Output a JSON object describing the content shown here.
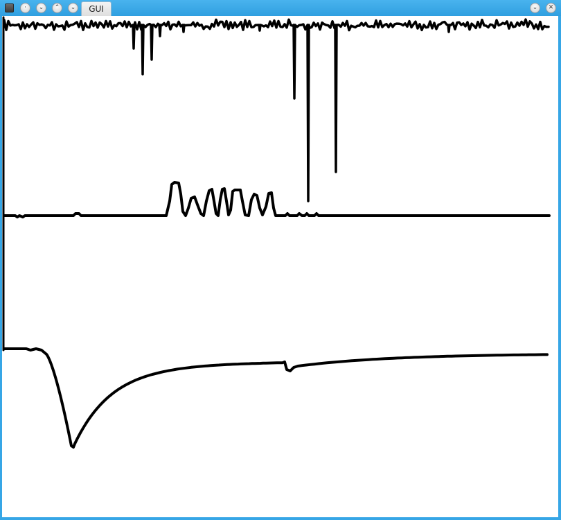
{
  "window": {
    "title": "GUI",
    "titlebar_color": "#36a6e6",
    "left_buttons": [
      {
        "name": "app-menu-icon"
      },
      {
        "name": "on-all-desktops-icon",
        "glyph": "·"
      },
      {
        "name": "shade-icon",
        "glyph": "⌄"
      },
      {
        "name": "keep-above-icon",
        "glyph": "⌃"
      },
      {
        "name": "keep-below-icon",
        "glyph": "⌄"
      }
    ],
    "right_buttons": [
      {
        "name": "minimize-icon",
        "glyph": "⌄"
      },
      {
        "name": "close-icon",
        "glyph": "✕"
      }
    ]
  },
  "canvas": {
    "background": "#ffffff",
    "trace_color": "#000000"
  }
}
